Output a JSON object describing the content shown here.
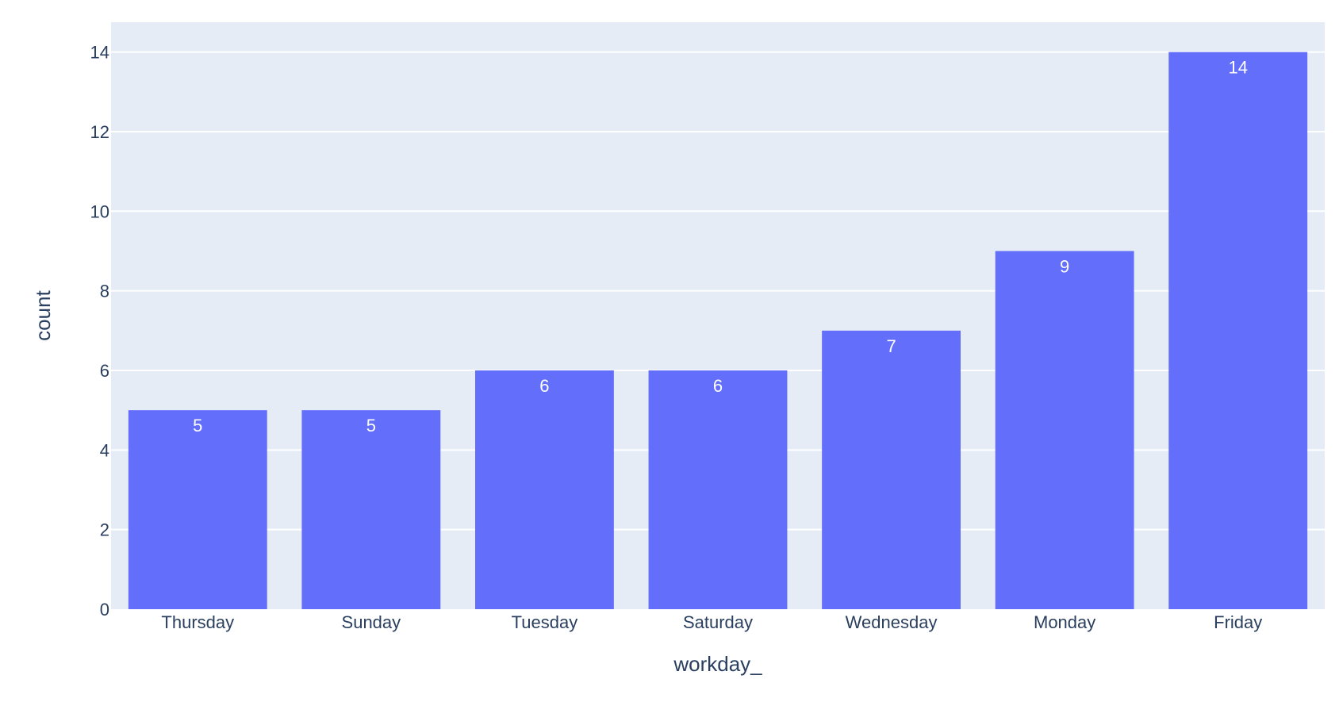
{
  "chart_data": {
    "type": "bar",
    "title": "",
    "xlabel": "workday_",
    "ylabel": "count",
    "categories": [
      "Thursday",
      "Sunday",
      "Tuesday",
      "Saturday",
      "Wednesday",
      "Monday",
      "Friday"
    ],
    "values": [
      5,
      5,
      6,
      6,
      7,
      9,
      14
    ],
    "ylim": [
      0,
      14.75
    ],
    "yticks": [
      0,
      2,
      4,
      6,
      8,
      10,
      12,
      14
    ],
    "grid": true,
    "data_labels": "inside-top",
    "legend": "none",
    "colors": {
      "bar": "#636efa",
      "plot_background": "#e5ecf6",
      "grid": "#ffffff",
      "text": "#2a3f5f",
      "bar_label": "#ffffff"
    }
  }
}
